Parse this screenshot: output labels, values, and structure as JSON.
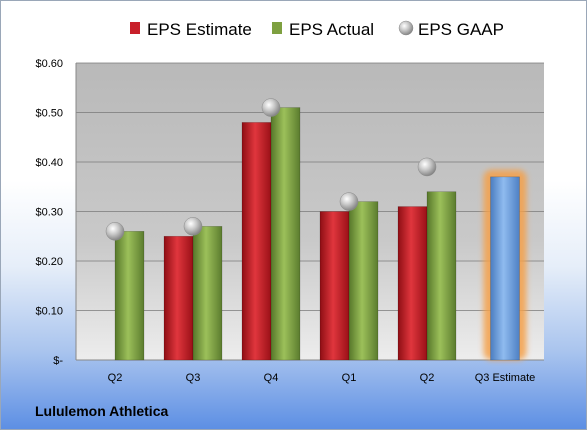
{
  "company": "Lululemon Athletica",
  "chart_data": {
    "type": "bar",
    "title": "",
    "xlabel": "",
    "ylabel": "",
    "categories": [
      "Q2",
      "Q3",
      "Q4",
      "Q1",
      "Q2",
      "Q3 Estimate"
    ],
    "series": [
      {
        "name": "EPS Estimate",
        "kind": "bar",
        "color": "#c8202a",
        "values": [
          null,
          0.25,
          0.48,
          0.3,
          0.31,
          null
        ]
      },
      {
        "name": "EPS Actual",
        "kind": "bar",
        "color": "#7ea040",
        "values": [
          0.26,
          0.27,
          0.51,
          0.32,
          0.34,
          null
        ]
      },
      {
        "name": "EPS GAAP",
        "kind": "point",
        "color": "#b8b8b8",
        "values": [
          0.26,
          0.27,
          0.51,
          0.32,
          0.39,
          null
        ]
      },
      {
        "name": "Q3 Estimate",
        "kind": "bar",
        "color": "#6fa0dc",
        "highlight": "#f5a04a",
        "values": [
          null,
          null,
          null,
          null,
          null,
          0.37
        ]
      }
    ],
    "ylim": [
      0,
      0.6
    ],
    "yticks": [
      0,
      0.1,
      0.2,
      0.3,
      0.4,
      0.5,
      0.6
    ],
    "ytick_labels": [
      "$-",
      "$0.10",
      "$0.20",
      "$0.30",
      "$0.40",
      "$0.50",
      "$0.60"
    ],
    "legend_position": "top",
    "grid": true
  }
}
